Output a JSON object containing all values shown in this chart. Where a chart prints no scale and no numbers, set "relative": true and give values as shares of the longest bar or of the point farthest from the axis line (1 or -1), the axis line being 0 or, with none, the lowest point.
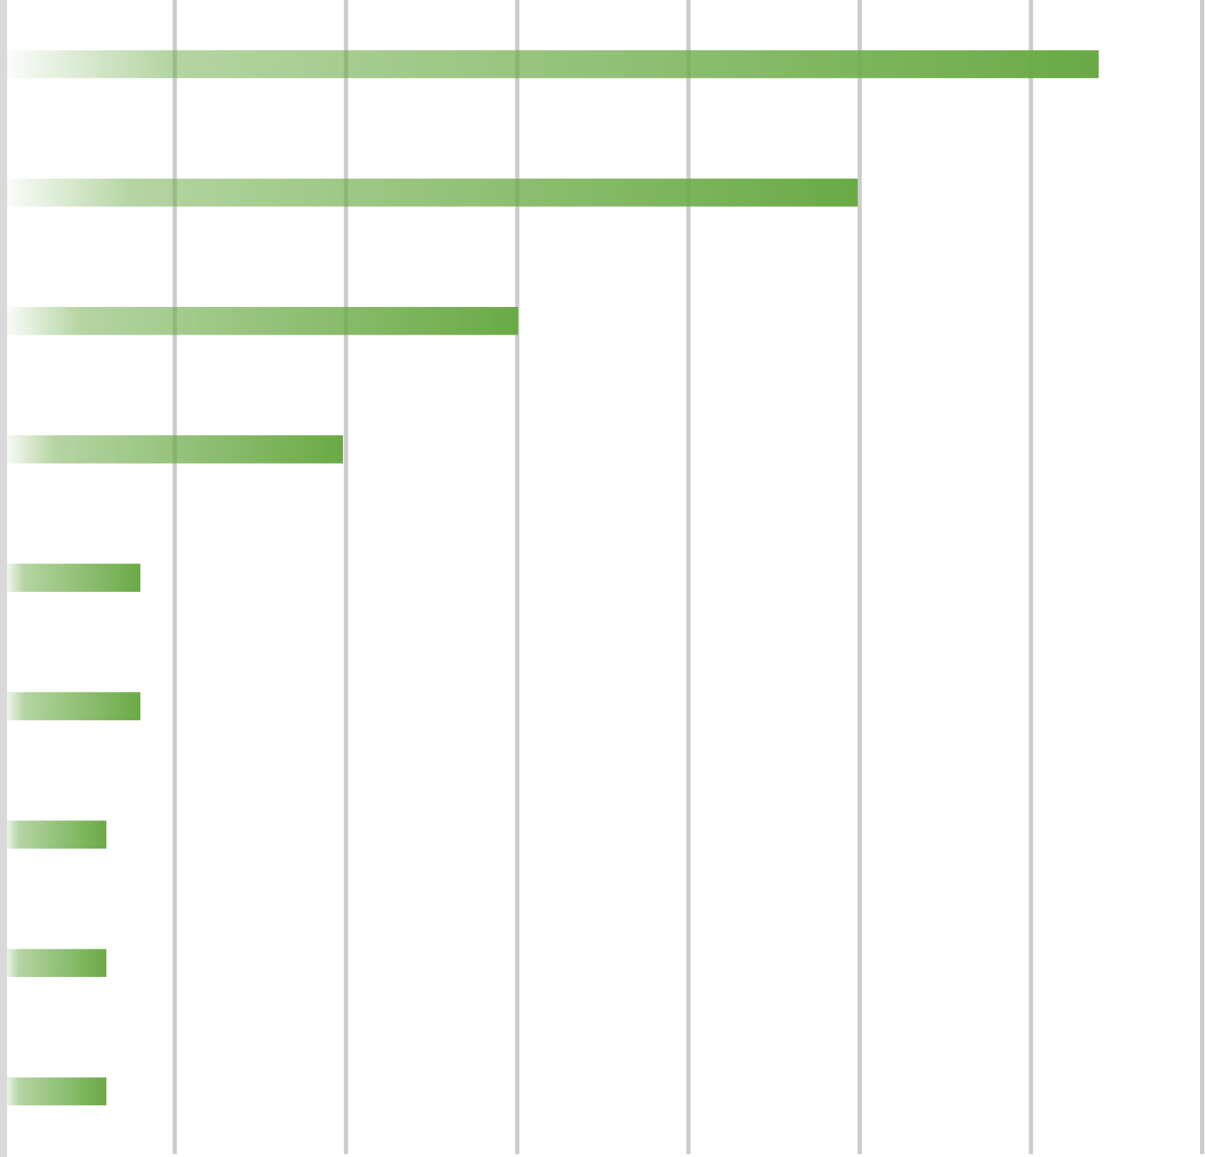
{
  "chart_data": {
    "type": "bar",
    "orientation": "horizontal",
    "relative": true,
    "categories": [
      null,
      null,
      null,
      null,
      null,
      null,
      null,
      null,
      null
    ],
    "values": [
      1,
      0.78,
      0.47,
      0.31,
      0.125,
      0.125,
      0.094,
      0.094,
      0.094
    ],
    "color": "#6aaa46",
    "grid": "x"
  }
}
